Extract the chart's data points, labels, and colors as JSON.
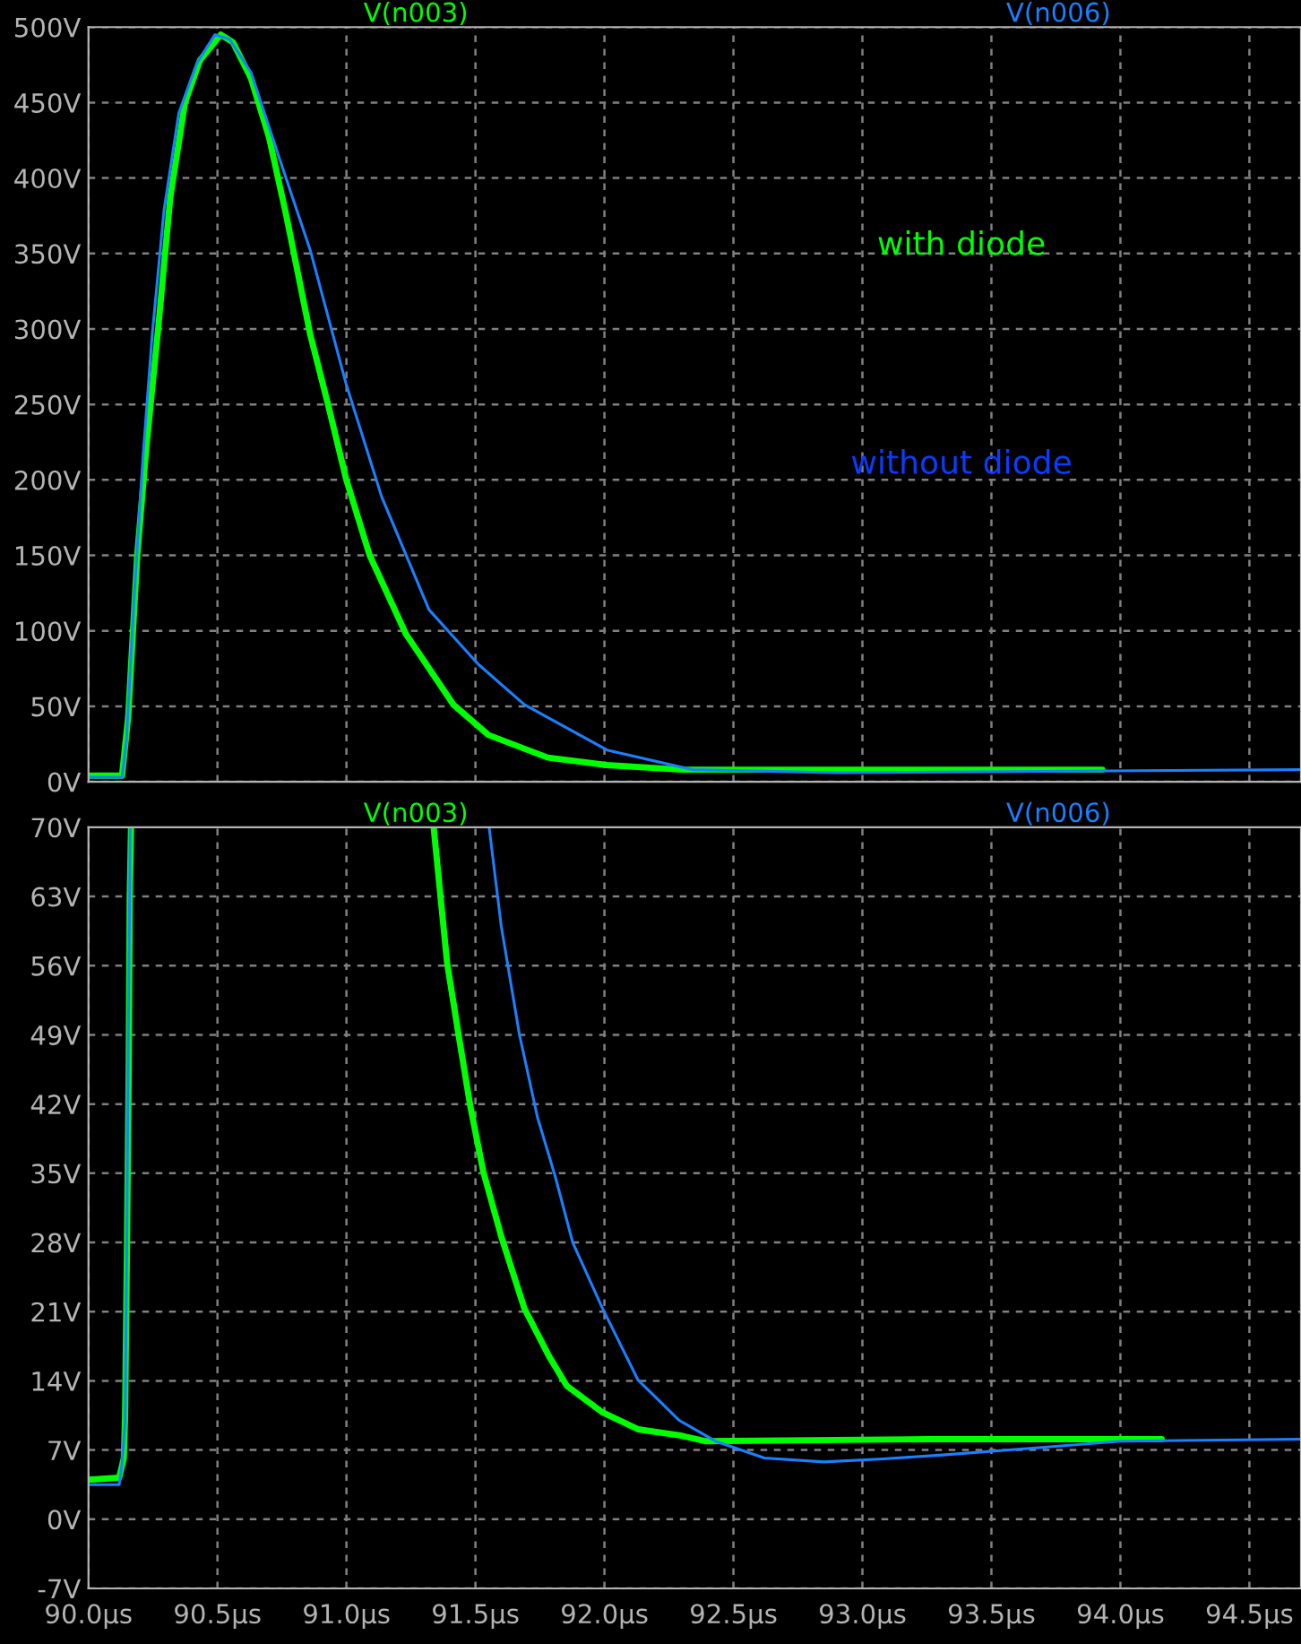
{
  "chart_data": [
    {
      "type": "line",
      "xlim": [
        90.0,
        94.7
      ],
      "ylim": [
        0,
        500
      ],
      "xticks": [
        90.0,
        90.5,
        91.0,
        91.5,
        92.0,
        92.5,
        93.0,
        93.5,
        94.0,
        94.5
      ],
      "yticks": [
        {
          "value": 0,
          "label": "0V"
        },
        {
          "value": 50,
          "label": "50V"
        },
        {
          "value": 100,
          "label": "100V"
        },
        {
          "value": 150,
          "label": "150V"
        },
        {
          "value": 200,
          "label": "200V"
        },
        {
          "value": 250,
          "label": "250V"
        },
        {
          "value": 300,
          "label": "300V"
        },
        {
          "value": 350,
          "label": "350V"
        },
        {
          "value": 400,
          "label": "400V"
        },
        {
          "value": 450,
          "label": "450V"
        },
        {
          "value": 500,
          "label": "500V"
        }
      ],
      "tick_labels": "y",
      "grid": true,
      "legend": "top",
      "line_style": "solid",
      "marker": "none",
      "annotations": [
        "with diode",
        "without diode"
      ],
      "series": [
        {
          "name": "V(n003)",
          "color": "#00ff00",
          "x": [
            90.0,
            90.13,
            90.154,
            90.189,
            90.224,
            90.27,
            90.317,
            90.374,
            90.432,
            90.513,
            90.56,
            90.63,
            90.7,
            90.767,
            90.86,
            90.93,
            90.998,
            91.09,
            91.23,
            91.415,
            91.55,
            91.78,
            92.01,
            92.3,
            93.93
          ],
          "values": [
            4,
            4,
            43,
            150,
            221,
            300,
            387,
            450,
            478,
            495,
            490,
            466,
            427,
            375,
            296,
            249,
            201,
            150,
            98,
            51,
            31,
            16,
            11,
            8,
            8
          ]
        },
        {
          "name": "V(n006)",
          "color": "#1a80ff",
          "x": [
            90.0,
            90.13,
            90.147,
            90.177,
            90.212,
            90.247,
            90.293,
            90.35,
            90.42,
            90.49,
            90.547,
            90.63,
            90.744,
            90.86,
            90.998,
            91.136,
            91.32,
            91.51,
            91.69,
            92.01,
            92.34,
            92.9,
            94.7
          ],
          "values": [
            3,
            3,
            27,
            122,
            217,
            296,
            379,
            443,
            476,
            495,
            492,
            470,
            411,
            352,
            264,
            189,
            114,
            78,
            51,
            21,
            8,
            6,
            8
          ]
        }
      ]
    },
    {
      "type": "line",
      "xlim": [
        90.0,
        94.7
      ],
      "ylim": [
        -7,
        70
      ],
      "xticks": [
        {
          "value": 90.0,
          "label": "90.0µs"
        },
        {
          "value": 90.5,
          "label": "90.5µs"
        },
        {
          "value": 91.0,
          "label": "91.0µs"
        },
        {
          "value": 91.5,
          "label": "91.5µs"
        },
        {
          "value": 92.0,
          "label": "92.0µs"
        },
        {
          "value": 92.5,
          "label": "92.5µs"
        },
        {
          "value": 93.0,
          "label": "93.0µs"
        },
        {
          "value": 93.5,
          "label": "93.5µs"
        },
        {
          "value": 94.0,
          "label": "94.0µs"
        },
        {
          "value": 94.5,
          "label": "94.5µs"
        }
      ],
      "yticks": [
        {
          "value": -7,
          "label": "-7V"
        },
        {
          "value": 0,
          "label": "0V"
        },
        {
          "value": 7,
          "label": "7V"
        },
        {
          "value": 14,
          "label": "14V"
        },
        {
          "value": 21,
          "label": "21V"
        },
        {
          "value": 28,
          "label": "28V"
        },
        {
          "value": 35,
          "label": "35V"
        },
        {
          "value": 42,
          "label": "42V"
        },
        {
          "value": 49,
          "label": "49V"
        },
        {
          "value": 56,
          "label": "56V"
        },
        {
          "value": 63,
          "label": "63V"
        },
        {
          "value": 70,
          "label": "70V"
        }
      ],
      "grid": true,
      "legend": "top",
      "line_style": "solid",
      "marker": "none",
      "series": [
        {
          "name": "V(n003)",
          "color": "#00ff00",
          "x": [
            90.0,
            90.119,
            90.137,
            90.142,
            90.149,
            90.156,
            90.16,
            90.165,
            91.0,
            91.338,
            91.39,
            91.434,
            91.48,
            91.53,
            91.6,
            91.69,
            91.785,
            91.854,
            91.993,
            92.13,
            92.29,
            92.39,
            93.25,
            94.16
          ],
          "values": [
            4,
            4.2,
            6.2,
            10.4,
            26.8,
            45.5,
            63,
            70,
            null,
            70,
            56.3,
            49.1,
            41.8,
            35.2,
            28.6,
            21.3,
            16.5,
            13.5,
            10.8,
            9.1,
            8.5,
            7.9,
            8.1,
            8.1
          ]
        },
        {
          "name": "V(n006)",
          "color": "#1a80ff",
          "x": [
            90.0,
            90.119,
            90.13,
            90.142,
            90.149,
            90.156,
            90.162,
            91.0,
            91.553,
            91.6,
            91.67,
            91.74,
            91.81,
            91.877,
            91.993,
            92.13,
            92.29,
            92.43,
            92.62,
            92.85,
            93.08,
            93.31,
            93.66,
            94.0,
            94.7
          ],
          "values": [
            3.5,
            3.5,
            5.6,
            9.8,
            29.8,
            53.9,
            70,
            null,
            70,
            60,
            49.1,
            40.7,
            34.6,
            28,
            21.3,
            14.1,
            10,
            7.9,
            6.2,
            5.8,
            6.1,
            6.5,
            7.2,
            7.9,
            8.1
          ]
        }
      ]
    }
  ]
}
